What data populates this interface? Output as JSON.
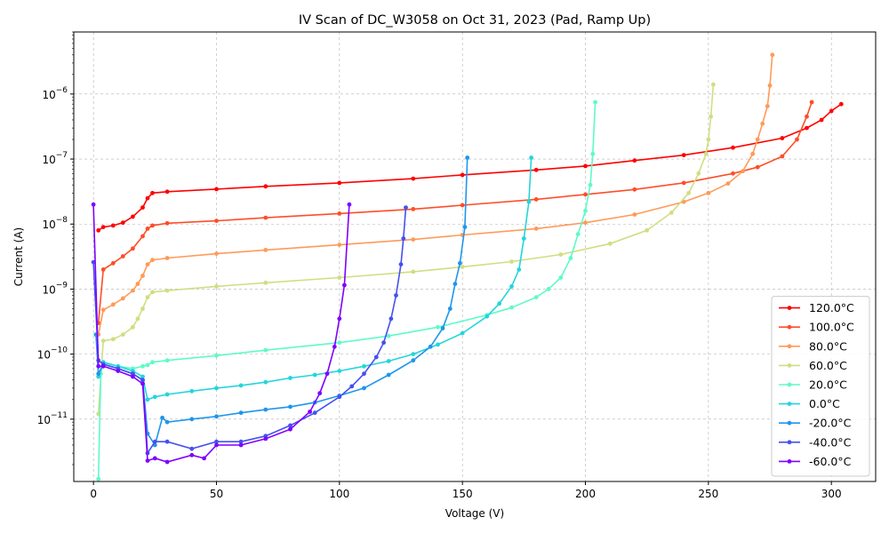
{
  "chart_data": {
    "type": "line",
    "title": "IV Scan of DC_W3058 on Oct 31, 2023 (Pad, Ramp Up)",
    "xlabel": "Voltage (V)",
    "ylabel": "Current (A)",
    "yscale": "log",
    "xlim": [
      -8,
      318
    ],
    "ylim": [
      1.1e-12,
      9e-06
    ],
    "xticks": [
      0,
      50,
      100,
      150,
      200,
      250,
      300
    ],
    "yticks": [
      {
        "value": 1e-11,
        "base": "10",
        "exp": "−11"
      },
      {
        "value": 1e-10,
        "base": "10",
        "exp": "−10"
      },
      {
        "value": 1e-09,
        "base": "10",
        "exp": "−9"
      },
      {
        "value": 1e-08,
        "base": "10",
        "exp": "−8"
      },
      {
        "value": 1e-07,
        "base": "10",
        "exp": "−7"
      },
      {
        "value": 1e-06,
        "base": "10",
        "exp": "−6"
      }
    ],
    "grid": true,
    "legend_position": "bottom-right",
    "series": [
      {
        "name": "120.0$^\\circ$C",
        "label": "120.0°C",
        "color": "#ff0000",
        "points": [
          [
            2,
            8e-09
          ],
          [
            4,
            9e-09
          ],
          [
            8,
            9.5e-09
          ],
          [
            12,
            1.05e-08
          ],
          [
            16,
            1.3e-08
          ],
          [
            20,
            1.8e-08
          ],
          [
            22,
            2.5e-08
          ],
          [
            24,
            3e-08
          ],
          [
            30,
            3.15e-08
          ],
          [
            50,
            3.45e-08
          ],
          [
            70,
            3.8e-08
          ],
          [
            100,
            4.3e-08
          ],
          [
            130,
            5e-08
          ],
          [
            150,
            5.7e-08
          ],
          [
            180,
            6.8e-08
          ],
          [
            200,
            7.8e-08
          ],
          [
            220,
            9.5e-08
          ],
          [
            240,
            1.15e-07
          ],
          [
            260,
            1.5e-07
          ],
          [
            280,
            2.1e-07
          ],
          [
            290,
            3e-07
          ],
          [
            296,
            4e-07
          ],
          [
            300,
            5.5e-07
          ],
          [
            304,
            7e-07
          ]
        ]
      },
      {
        "name": "100.0$^\\circ$C",
        "label": "100.0°C",
        "color": "#ff4d28",
        "points": [
          [
            2,
            3e-10
          ],
          [
            4,
            2e-09
          ],
          [
            8,
            2.5e-09
          ],
          [
            12,
            3.2e-09
          ],
          [
            16,
            4.2e-09
          ],
          [
            20,
            6.5e-09
          ],
          [
            22,
            8.5e-09
          ],
          [
            24,
            9.5e-09
          ],
          [
            30,
            1.03e-08
          ],
          [
            50,
            1.12e-08
          ],
          [
            70,
            1.25e-08
          ],
          [
            100,
            1.45e-08
          ],
          [
            130,
            1.7e-08
          ],
          [
            150,
            1.95e-08
          ],
          [
            180,
            2.4e-08
          ],
          [
            200,
            2.85e-08
          ],
          [
            220,
            3.4e-08
          ],
          [
            240,
            4.3e-08
          ],
          [
            260,
            6e-08
          ],
          [
            270,
            7.5e-08
          ],
          [
            280,
            1.1e-07
          ],
          [
            286,
            2e-07
          ],
          [
            290,
            4.5e-07
          ],
          [
            292,
            7.5e-07
          ]
        ]
      },
      {
        "name": "80.0$^\\circ$C",
        "label": "80.0°C",
        "color": "#ff9a58",
        "points": [
          [
            2,
            2e-10
          ],
          [
            4,
            4.8e-10
          ],
          [
            8,
            5.8e-10
          ],
          [
            12,
            7.2e-10
          ],
          [
            16,
            9.5e-10
          ],
          [
            18,
            1.2e-09
          ],
          [
            20,
            1.6e-09
          ],
          [
            22,
            2.4e-09
          ],
          [
            24,
            2.8e-09
          ],
          [
            30,
            3e-09
          ],
          [
            50,
            3.5e-09
          ],
          [
            70,
            4e-09
          ],
          [
            100,
            4.8e-09
          ],
          [
            130,
            5.8e-09
          ],
          [
            150,
            6.8e-09
          ],
          [
            180,
            8.5e-09
          ],
          [
            200,
            1.05e-08
          ],
          [
            220,
            1.4e-08
          ],
          [
            240,
            2.2e-08
          ],
          [
            250,
            3e-08
          ],
          [
            258,
            4.2e-08
          ],
          [
            264,
            6.5e-08
          ],
          [
            268,
            1.2e-07
          ],
          [
            270,
            2e-07
          ],
          [
            272,
            3.5e-07
          ],
          [
            274,
            6.5e-07
          ],
          [
            275,
            1.35e-06
          ],
          [
            276,
            4e-06
          ]
        ]
      },
      {
        "name": "60.0$^\\circ$C",
        "label": "60.0°C",
        "color": "#d0de82",
        "points": [
          [
            2,
            1.2e-11
          ],
          [
            4,
            1.6e-10
          ],
          [
            8,
            1.7e-10
          ],
          [
            12,
            2e-10
          ],
          [
            16,
            2.6e-10
          ],
          [
            18,
            3.5e-10
          ],
          [
            20,
            5e-10
          ],
          [
            22,
            7.5e-10
          ],
          [
            24,
            9e-10
          ],
          [
            30,
            9.5e-10
          ],
          [
            50,
            1.1e-09
          ],
          [
            70,
            1.25e-09
          ],
          [
            100,
            1.5e-09
          ],
          [
            130,
            1.85e-09
          ],
          [
            150,
            2.2e-09
          ],
          [
            170,
            2.65e-09
          ],
          [
            190,
            3.4e-09
          ],
          [
            210,
            5e-09
          ],
          [
            225,
            8e-09
          ],
          [
            235,
            1.5e-08
          ],
          [
            242,
            3e-08
          ],
          [
            246,
            6e-08
          ],
          [
            249,
            1.2e-07
          ],
          [
            250,
            2e-07
          ],
          [
            251,
            4.5e-07
          ],
          [
            252,
            1.4e-06
          ]
        ]
      },
      {
        "name": "20.0$^\\circ$C",
        "label": "20.0°C",
        "color": "#5efaca",
        "points": [
          [
            2,
            1.2e-12
          ],
          [
            3,
            5e-11
          ],
          [
            4,
            7.5e-11
          ],
          [
            10,
            6.5e-11
          ],
          [
            16,
            6e-11
          ],
          [
            20,
            6.5e-11
          ],
          [
            22,
            6.8e-11
          ],
          [
            24,
            7.5e-11
          ],
          [
            30,
            8e-11
          ],
          [
            50,
            9.5e-11
          ],
          [
            70,
            1.15e-10
          ],
          [
            100,
            1.5e-10
          ],
          [
            120,
            1.9e-10
          ],
          [
            140,
            2.6e-10
          ],
          [
            160,
            4e-10
          ],
          [
            170,
            5.2e-10
          ],
          [
            180,
            7.5e-10
          ],
          [
            185,
            1e-09
          ],
          [
            190,
            1.5e-09
          ],
          [
            194,
            3e-09
          ],
          [
            197,
            7e-09
          ],
          [
            200,
            1.6e-08
          ],
          [
            202,
            4e-08
          ],
          [
            203,
            1.2e-07
          ],
          [
            204,
            7.5e-07
          ]
        ]
      },
      {
        "name": "0.0$^\\circ$C",
        "label": "0.0°C",
        "color": "#24d5dc",
        "points": [
          [
            2,
            4.5e-11
          ],
          [
            4,
            7.5e-11
          ],
          [
            10,
            6.5e-11
          ],
          [
            16,
            5.5e-11
          ],
          [
            20,
            4.5e-11
          ],
          [
            22,
            2e-11
          ],
          [
            25,
            2.2e-11
          ],
          [
            30,
            2.4e-11
          ],
          [
            40,
            2.7e-11
          ],
          [
            50,
            3e-11
          ],
          [
            60,
            3.3e-11
          ],
          [
            70,
            3.7e-11
          ],
          [
            80,
            4.3e-11
          ],
          [
            90,
            4.8e-11
          ],
          [
            100,
            5.5e-11
          ],
          [
            110,
            6.5e-11
          ],
          [
            120,
            7.8e-11
          ],
          [
            130,
            1e-10
          ],
          [
            140,
            1.4e-10
          ],
          [
            150,
            2.1e-10
          ],
          [
            160,
            3.8e-10
          ],
          [
            165,
            6e-10
          ],
          [
            170,
            1.1e-09
          ],
          [
            173,
            2e-09
          ],
          [
            175,
            6e-09
          ],
          [
            177,
            2.2e-08
          ],
          [
            178,
            1.05e-07
          ]
        ]
      },
      {
        "name": "-20.0$^\\circ$C",
        "label": "-20.0°C",
        "color": "#1e96ec",
        "points": [
          [
            1,
            2e-10
          ],
          [
            2,
            5e-11
          ],
          [
            4,
            7e-11
          ],
          [
            10,
            6e-11
          ],
          [
            16,
            5e-11
          ],
          [
            20,
            4e-11
          ],
          [
            22,
            6e-12
          ],
          [
            25,
            4e-12
          ],
          [
            28,
            1.05e-11
          ],
          [
            30,
            9e-12
          ],
          [
            40,
            1e-11
          ],
          [
            50,
            1.1e-11
          ],
          [
            60,
            1.25e-11
          ],
          [
            70,
            1.4e-11
          ],
          [
            80,
            1.55e-11
          ],
          [
            90,
            1.8e-11
          ],
          [
            100,
            2.3e-11
          ],
          [
            110,
            3e-11
          ],
          [
            120,
            4.8e-11
          ],
          [
            130,
            8e-11
          ],
          [
            137,
            1.3e-10
          ],
          [
            142,
            2.5e-10
          ],
          [
            145,
            5e-10
          ],
          [
            147,
            1.2e-09
          ],
          [
            149,
            2.5e-09
          ],
          [
            151,
            9e-09
          ],
          [
            152,
            1.05e-07
          ]
        ]
      },
      {
        "name": "-40.0$^\\circ$C",
        "label": "-40.0°C",
        "color": "#4650ef",
        "points": [
          [
            0,
            2.6e-09
          ],
          [
            2,
            8e-11
          ],
          [
            4,
            7e-11
          ],
          [
            10,
            6e-11
          ],
          [
            16,
            5e-11
          ],
          [
            20,
            4e-11
          ],
          [
            22,
            3e-12
          ],
          [
            25,
            4.5e-12
          ],
          [
            30,
            4.5e-12
          ],
          [
            40,
            3.5e-12
          ],
          [
            50,
            4.5e-12
          ],
          [
            60,
            4.5e-12
          ],
          [
            70,
            5.5e-12
          ],
          [
            80,
            8e-12
          ],
          [
            90,
            1.25e-11
          ],
          [
            100,
            2.2e-11
          ],
          [
            105,
            3.2e-11
          ],
          [
            110,
            5e-11
          ],
          [
            115,
            9e-11
          ],
          [
            118,
            1.5e-10
          ],
          [
            121,
            3.5e-10
          ],
          [
            123,
            8e-10
          ],
          [
            125,
            2.4e-09
          ],
          [
            126,
            6e-09
          ],
          [
            127,
            1.8e-08
          ]
        ]
      },
      {
        "name": "-60.0$^\\circ$C",
        "label": "-60.0°C",
        "color": "#7f00ff",
        "points": [
          [
            0,
            2e-08
          ],
          [
            2,
            6.5e-11
          ],
          [
            4,
            6.5e-11
          ],
          [
            10,
            5.5e-11
          ],
          [
            16,
            4.5e-11
          ],
          [
            20,
            3.5e-11
          ],
          [
            22,
            2.3e-12
          ],
          [
            25,
            2.5e-12
          ],
          [
            30,
            2.2e-12
          ],
          [
            40,
            2.8e-12
          ],
          [
            45,
            2.5e-12
          ],
          [
            50,
            4e-12
          ],
          [
            60,
            4e-12
          ],
          [
            70,
            5e-12
          ],
          [
            80,
            7e-12
          ],
          [
            88,
            1.3e-11
          ],
          [
            92,
            2.5e-11
          ],
          [
            95,
            5e-11
          ],
          [
            98,
            1.3e-10
          ],
          [
            100,
            3.5e-10
          ],
          [
            102,
            1.15e-09
          ],
          [
            104,
            2e-08
          ]
        ]
      }
    ]
  }
}
